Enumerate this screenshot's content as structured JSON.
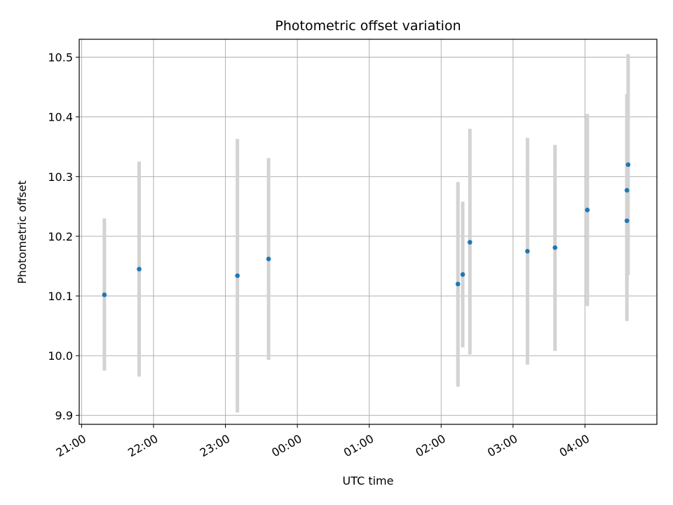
{
  "chart_data": {
    "type": "scatter",
    "title": "Photometric offset variation",
    "xlabel": "UTC time",
    "ylabel": "Photometric offset",
    "grid": true,
    "x_range": [
      "2000-01-01T20:58",
      "2000-01-02T05:00"
    ],
    "x_ticks": [
      {
        "time": "2000-01-01T21:00",
        "label": "21:00"
      },
      {
        "time": "2000-01-01T22:00",
        "label": "22:00"
      },
      {
        "time": "2000-01-01T23:00",
        "label": "23:00"
      },
      {
        "time": "2000-01-02T00:00",
        "label": "00:00"
      },
      {
        "time": "2000-01-02T01:00",
        "label": "01:00"
      },
      {
        "time": "2000-01-02T02:00",
        "label": "02:00"
      },
      {
        "time": "2000-01-02T03:00",
        "label": "03:00"
      },
      {
        "time": "2000-01-02T04:00",
        "label": "04:00"
      }
    ],
    "ylim": [
      9.885,
      10.53
    ],
    "y_ticks": [
      {
        "value": 9.9,
        "label": "9.9"
      },
      {
        "value": 10.0,
        "label": "10.0"
      },
      {
        "value": 10.1,
        "label": "10.1"
      },
      {
        "value": 10.2,
        "label": "10.2"
      },
      {
        "value": 10.3,
        "label": "10.3"
      },
      {
        "value": 10.4,
        "label": "10.4"
      },
      {
        "value": 10.5,
        "label": "10.5"
      }
    ],
    "colors": {
      "point": "#1f77b4",
      "errorbar": "#d3d3d3",
      "grid": "#b0b0b0",
      "axis": "#000000"
    },
    "points": [
      {
        "time": "2000-01-01T21:19",
        "value": 10.102,
        "low": 9.975,
        "high": 10.23
      },
      {
        "time": "2000-01-01T21:48",
        "value": 10.145,
        "low": 9.965,
        "high": 10.325
      },
      {
        "time": "2000-01-01T23:10",
        "value": 10.134,
        "low": 9.905,
        "high": 10.363
      },
      {
        "time": "2000-01-01T23:36",
        "value": 10.162,
        "low": 9.993,
        "high": 10.331
      },
      {
        "time": "2000-01-02T02:14",
        "value": 10.12,
        "low": 9.948,
        "high": 10.291
      },
      {
        "time": "2000-01-02T02:18",
        "value": 10.136,
        "low": 10.014,
        "high": 10.258
      },
      {
        "time": "2000-01-02T02:24",
        "value": 10.19,
        "low": 10.002,
        "high": 10.38
      },
      {
        "time": "2000-01-02T03:12",
        "value": 10.175,
        "low": 9.985,
        "high": 10.365
      },
      {
        "time": "2000-01-02T03:35",
        "value": 10.181,
        "low": 10.008,
        "high": 10.353
      },
      {
        "time": "2000-01-02T04:02",
        "value": 10.244,
        "low": 10.083,
        "high": 10.405
      },
      {
        "time": "2000-01-02T04:35",
        "value": 10.226,
        "low": 10.058,
        "high": 10.394
      },
      {
        "time": "2000-01-02T04:35",
        "value": 10.277,
        "low": 10.115,
        "high": 10.438
      },
      {
        "time": "2000-01-02T04:36",
        "value": 10.32,
        "low": 10.135,
        "high": 10.505
      }
    ]
  }
}
